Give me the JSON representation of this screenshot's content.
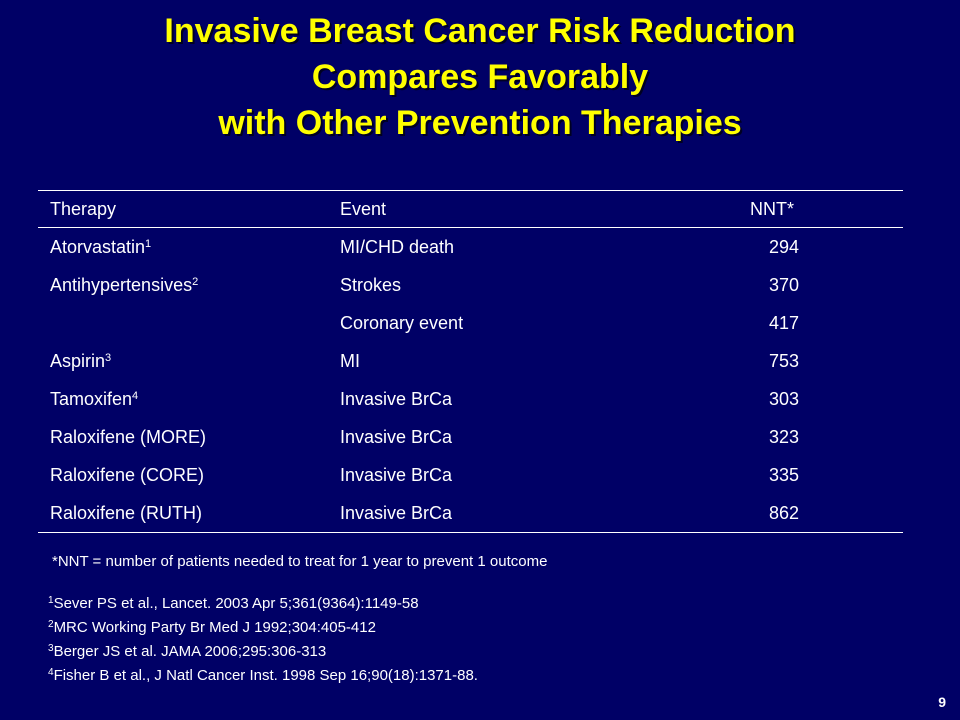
{
  "title": {
    "line1": "Invasive Breast Cancer Risk Reduction",
    "line2": "Compares Favorably",
    "line3": "with Other Prevention Therapies"
  },
  "table": {
    "headers": [
      "Therapy",
      "Event",
      "NNT*"
    ],
    "rows": [
      {
        "therapy": "Atorvastatin",
        "sup": "1",
        "event": "MI/CHD death",
        "nnt": "294"
      },
      {
        "therapy": "Antihypertensives",
        "sup": "2",
        "event": "Strokes",
        "nnt": "370"
      },
      {
        "therapy": "",
        "sup": "",
        "event": "Coronary event",
        "nnt": "417"
      },
      {
        "therapy": "Aspirin",
        "sup": "3",
        "event": "MI",
        "nnt": "753"
      },
      {
        "therapy": "Tamoxifen",
        "sup": "4",
        "event": "Invasive BrCa",
        "nnt": "303"
      },
      {
        "therapy": "Raloxifene (MORE)",
        "sup": "",
        "event": "Invasive BrCa",
        "nnt": "323"
      },
      {
        "therapy": "Raloxifene (CORE)",
        "sup": "",
        "event": "Invasive BrCa",
        "nnt": "335"
      },
      {
        "therapy": "Raloxifene (RUTH)",
        "sup": "",
        "event": "Invasive BrCa",
        "nnt": "862"
      }
    ]
  },
  "footnote": "*NNT = number of patients needed to treat for 1 year to prevent 1 outcome",
  "references": [
    {
      "num": "1",
      "text": "Sever PS et al., Lancet. 2003 Apr 5;361(9364):1149-58"
    },
    {
      "num": "2",
      "text": "MRC Working Party Br Med J 1992;304:405-412"
    },
    {
      "num": "3",
      "text": "Berger JS et al. JAMA 2006;295:306-313"
    },
    {
      "num": "4",
      "text": "Fisher B et al., J Natl Cancer Inst. 1998 Sep 16;90(18):1371-88."
    }
  ],
  "page_number": "9",
  "colors": {
    "background": "#000066",
    "title": "#ffff00",
    "text": "#ffffff"
  }
}
